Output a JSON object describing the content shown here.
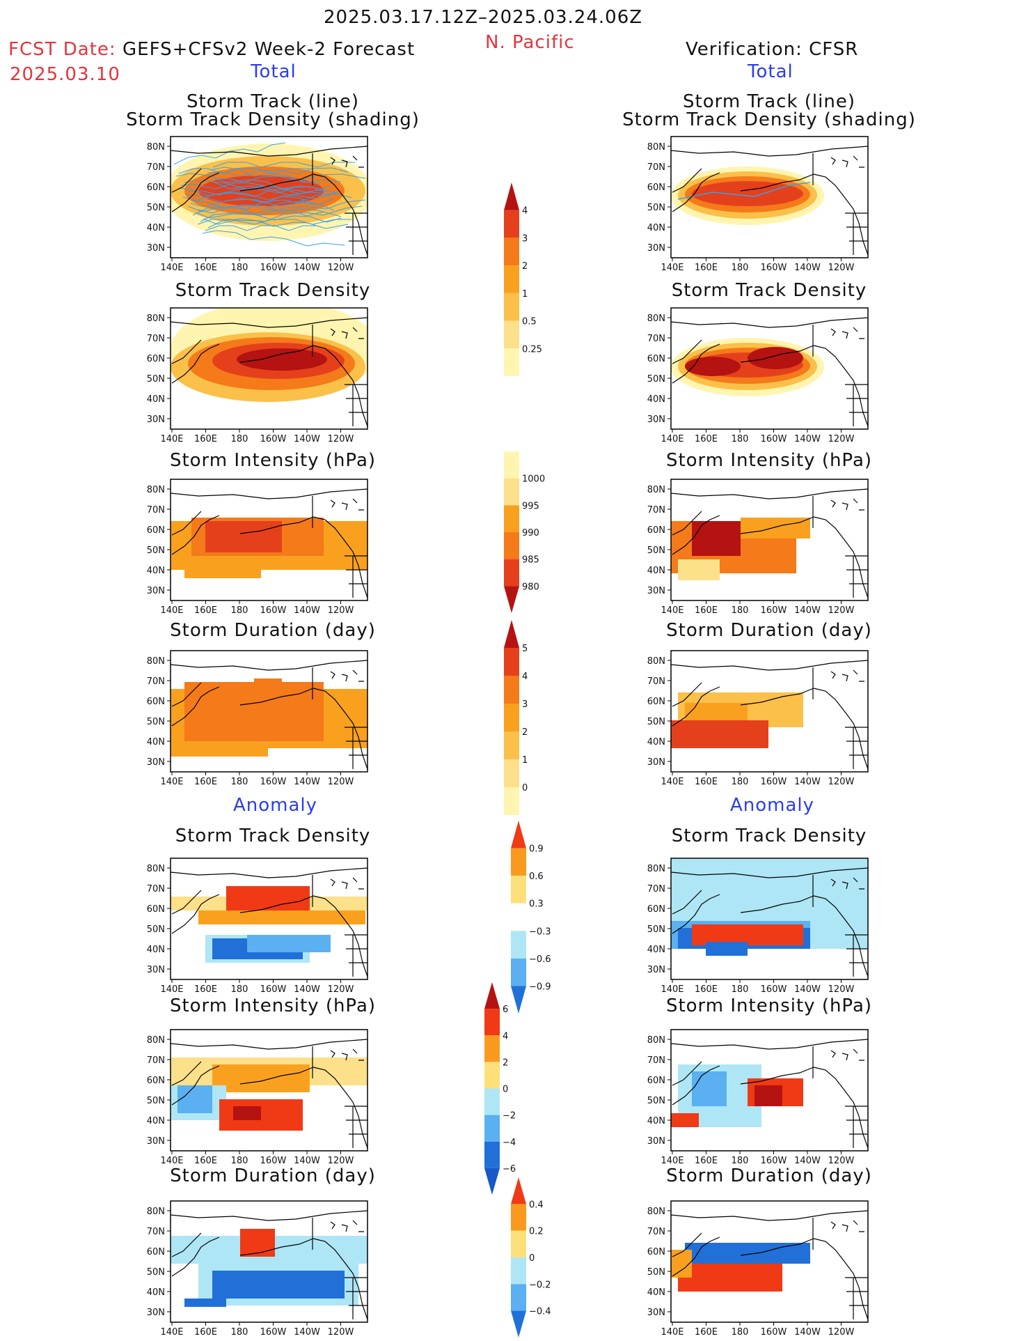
{
  "header": {
    "date_range": "2025.03.17.12Z–2025.03.24.06Z",
    "region": "N. Pacific",
    "fcst_label": "FCST Date:",
    "fcst_source": "GEFS+CFSv2 Week-2 Forecast",
    "fcst_date": "2025.03.10",
    "verification": "Verification: CFSR"
  },
  "sections": {
    "total": "Total",
    "anomaly": "Anomaly"
  },
  "panel_titles": {
    "track_line": "Storm Track (line)",
    "track_density_shading": "Storm Track Density (shading)",
    "track_density": "Storm Track Density",
    "intensity": "Storm Intensity (hPa)",
    "duration": "Storm Duration (day)"
  },
  "axes": {
    "lon_ticks": [
      "140E",
      "160E",
      "180",
      "160W",
      "140W",
      "120W"
    ],
    "lat_ticks": [
      "80N",
      "70N",
      "60N",
      "50N",
      "40N",
      "30N"
    ]
  },
  "colorbars": {
    "density": {
      "labels": [
        "0.25",
        "0.5",
        "1",
        "2",
        "3",
        "4"
      ],
      "colors": [
        "#fff5b0",
        "#fde08a",
        "#fbc04a",
        "#f9a11e",
        "#f47a1a",
        "#e5401c",
        "#b51212"
      ]
    },
    "intensity": {
      "labels": [
        "1000",
        "995",
        "990",
        "985",
        "980"
      ],
      "colors": [
        "#fff5b0",
        "#fde08a",
        "#f9a11e",
        "#f47a1a",
        "#e5401c",
        "#b51212"
      ]
    },
    "duration": {
      "labels": [
        "0",
        "1",
        "2",
        "3",
        "4",
        "5"
      ],
      "colors": [
        "#fff5b0",
        "#fde08a",
        "#fbc04a",
        "#f9a11e",
        "#f47a1a",
        "#e5401c",
        "#b51212"
      ]
    },
    "anom_density": {
      "labels": [
        "0.9",
        "0.6",
        "0.3",
        "−0.3",
        "−0.6",
        "−0.9"
      ],
      "colors": [
        "#f03a16",
        "#f99a1e",
        "#fde07a",
        "#ffffff",
        "#aee6f5",
        "#5ab0f0",
        "#2070d8"
      ]
    },
    "anom_intensity": {
      "labels": [
        "6",
        "4",
        "2",
        "0",
        "−2",
        "−4",
        "−6"
      ],
      "colors": [
        "#b51212",
        "#f03a16",
        "#f99a1e",
        "#fde07a",
        "#aee6f5",
        "#5ab0f0",
        "#2070d8",
        "#1858c8"
      ]
    },
    "anom_duration": {
      "labels": [
        "0.4",
        "0.2",
        "0",
        "−0.2",
        "−0.4"
      ],
      "colors": [
        "#f03a16",
        "#f99a1e",
        "#fde07a",
        "#aee6f5",
        "#5ab0f0",
        "#2070d8"
      ]
    }
  }
}
